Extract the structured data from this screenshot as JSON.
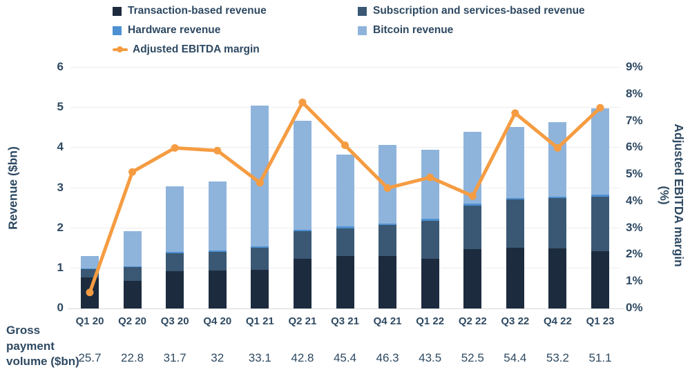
{
  "colors": {
    "transaction": "#1C2B3E",
    "subscription": "#3A5874",
    "hardware": "#4E91D2",
    "bitcoin": "#8FB4DC",
    "ebitda_line": "#F59C42",
    "text": "#2E4962",
    "gridline": "#ECECEC"
  },
  "legend": {
    "items": [
      "Transaction-based revenue",
      "Subscription and services-based revenue",
      "Hardware revenue",
      "Bitcoin revenue",
      "Adjusted EBITDA margin"
    ]
  },
  "left_axis": {
    "label": "Revenue ($bn)",
    "min": 0,
    "max": 6,
    "ticks": [
      0,
      1,
      2,
      3,
      4,
      5,
      6
    ]
  },
  "right_axis": {
    "label": "Adjusted EBITDA margin (%)",
    "min": 0,
    "max": 9,
    "ticks": [
      "0%",
      "1%",
      "2%",
      "3%",
      "4%",
      "5%",
      "6%",
      "7%",
      "8%",
      "9%"
    ]
  },
  "footer": {
    "label": "Gross\npayment\nvolume ($bn)",
    "values": [
      "25.7",
      "22.8",
      "31.7",
      "32",
      "33.1",
      "42.8",
      "45.4",
      "46.3",
      "43.5",
      "52.5",
      "54.4",
      "53.2",
      "51.1"
    ]
  },
  "chart_data": {
    "type": "bar",
    "subtype": "stacked-bar-with-line-overlay",
    "title": "",
    "xlabel": "",
    "ylabel": "Revenue ($bn)",
    "y2label": "Adjusted EBITDA margin (%)",
    "ylim": [
      0,
      6
    ],
    "y2lim": [
      0,
      9
    ],
    "grid": true,
    "legend_position": "top",
    "categories": [
      "Q1 20",
      "Q2 20",
      "Q3 20",
      "Q4 20",
      "Q1 21",
      "Q2 21",
      "Q3 21",
      "Q4 21",
      "Q1 22",
      "Q2 22",
      "Q3 22",
      "Q4 22",
      "Q1 23"
    ],
    "series": [
      {
        "name": "Transaction-based revenue",
        "color": "#1C2B3E",
        "values": [
          0.78,
          0.68,
          0.93,
          0.94,
          0.96,
          1.23,
          1.3,
          1.31,
          1.23,
          1.48,
          1.52,
          1.49,
          1.42
        ]
      },
      {
        "name": "Subscription and services-based revenue",
        "color": "#3A5874",
        "values": [
          0.2,
          0.35,
          0.45,
          0.47,
          0.56,
          0.69,
          0.7,
          0.77,
          0.96,
          1.09,
          1.19,
          1.26,
          1.37
        ]
      },
      {
        "name": "Hardware revenue",
        "color": "#4E91D2",
        "values": [
          0.02,
          0.02,
          0.03,
          0.03,
          0.03,
          0.04,
          0.04,
          0.04,
          0.04,
          0.05,
          0.04,
          0.04,
          0.04
        ]
      },
      {
        "name": "Bitcoin revenue",
        "color": "#8FB4DC",
        "values": [
          0.31,
          0.87,
          1.63,
          1.72,
          3.5,
          2.72,
          1.8,
          1.96,
          1.73,
          1.78,
          1.77,
          1.86,
          2.16
        ]
      }
    ],
    "line_series": {
      "name": "Adjusted EBITDA margin",
      "axis": "right",
      "color": "#F59C42",
      "values": [
        0.6,
        5.1,
        6.0,
        5.9,
        4.7,
        7.7,
        6.1,
        4.5,
        4.9,
        4.2,
        7.3,
        6.0,
        7.5
      ]
    },
    "footer_row": {
      "label": "Gross payment volume ($bn)",
      "values": [
        25.7,
        22.8,
        31.7,
        32,
        33.1,
        42.8,
        45.4,
        46.3,
        43.5,
        52.5,
        54.4,
        53.2,
        51.1
      ]
    }
  }
}
